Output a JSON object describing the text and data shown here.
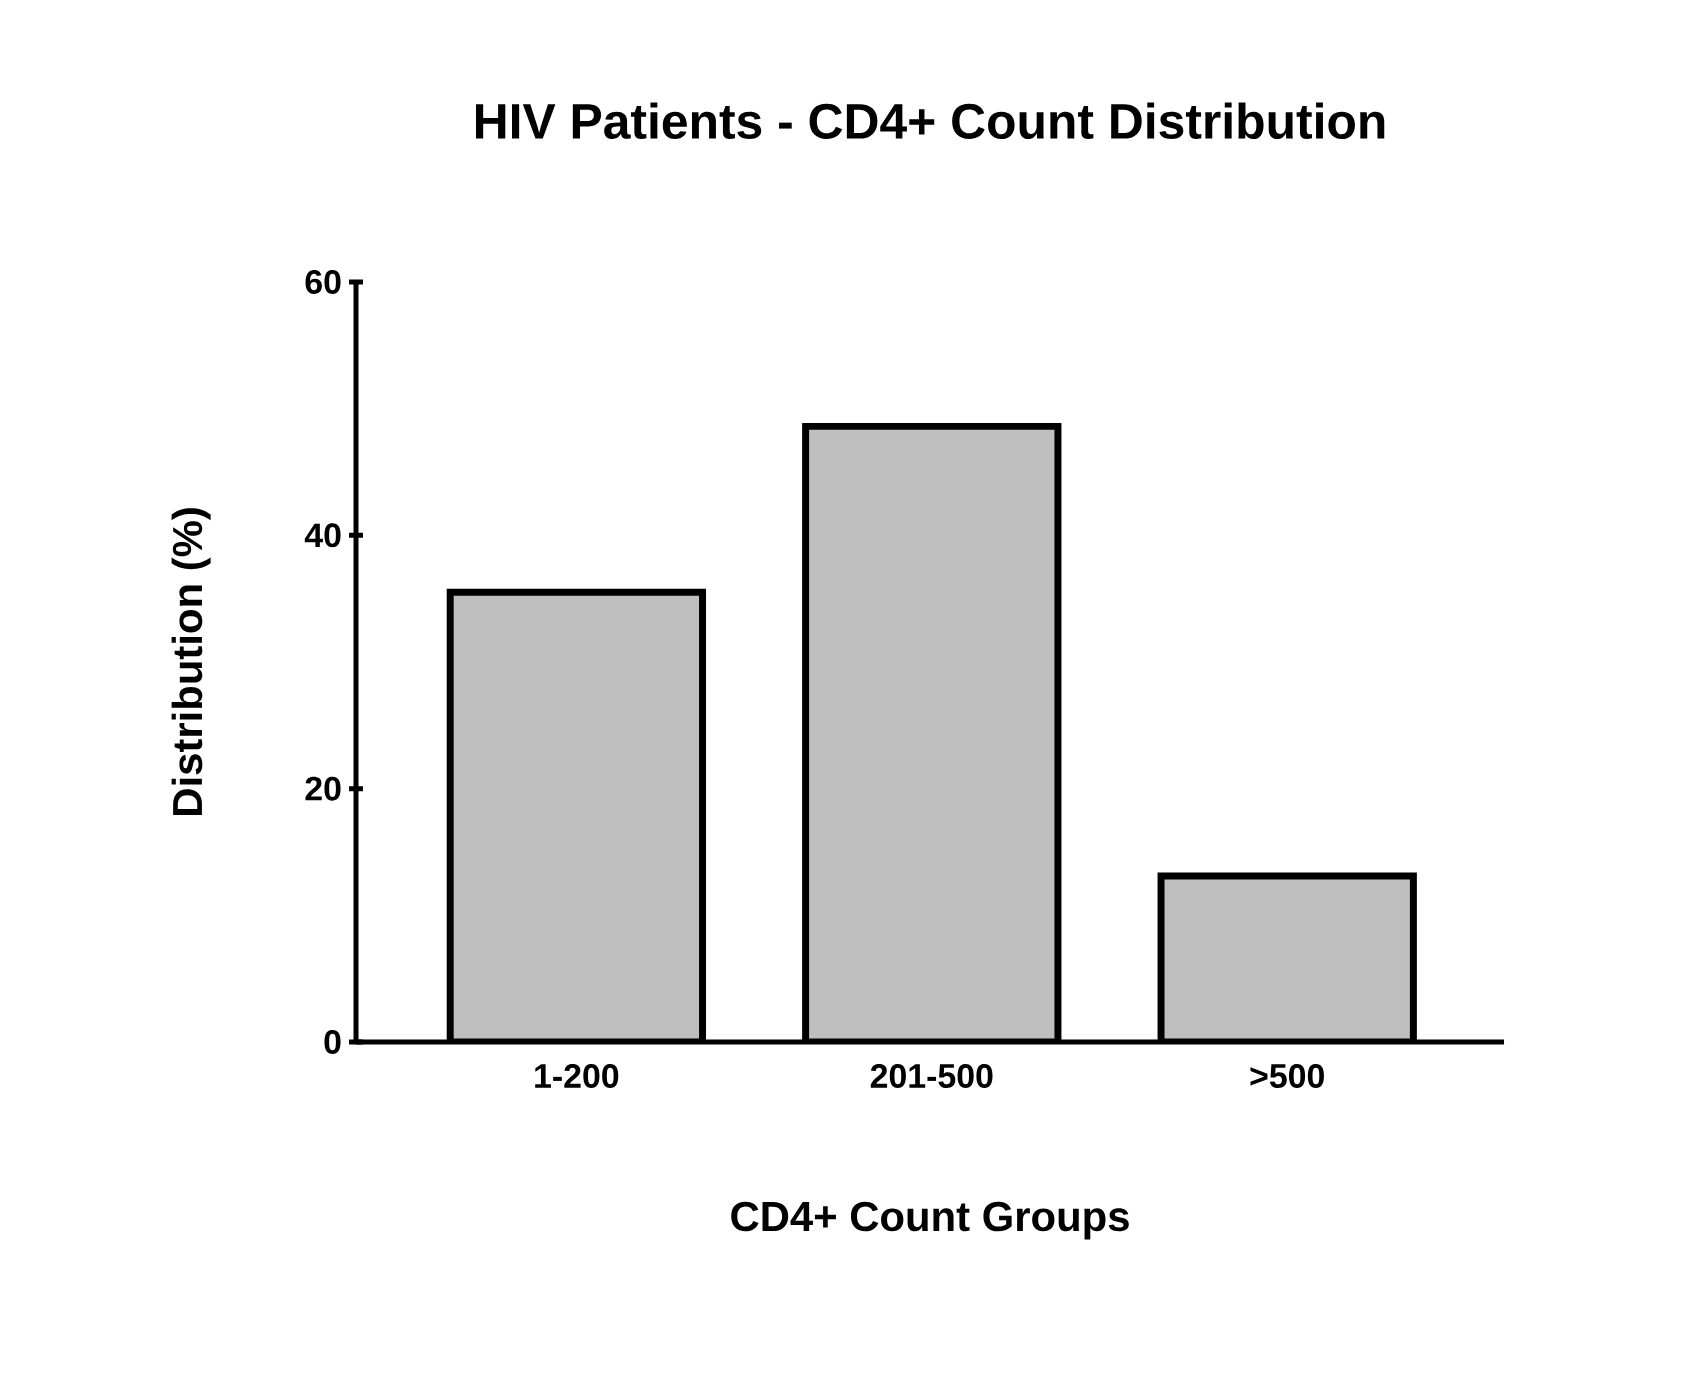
{
  "chart_data": {
    "type": "bar",
    "title": "HIV Patients - CD4+ Count Distribution",
    "xlabel": "CD4+ Count Groups",
    "ylabel": "Distribution (%)",
    "categories": [
      "1-200",
      "201-500",
      ">500"
    ],
    "values": [
      35.5,
      48.6,
      13.1
    ],
    "color": "#bfbfbf",
    "ylim": [
      0,
      60
    ],
    "yticks": [
      0,
      20,
      40,
      60
    ]
  }
}
